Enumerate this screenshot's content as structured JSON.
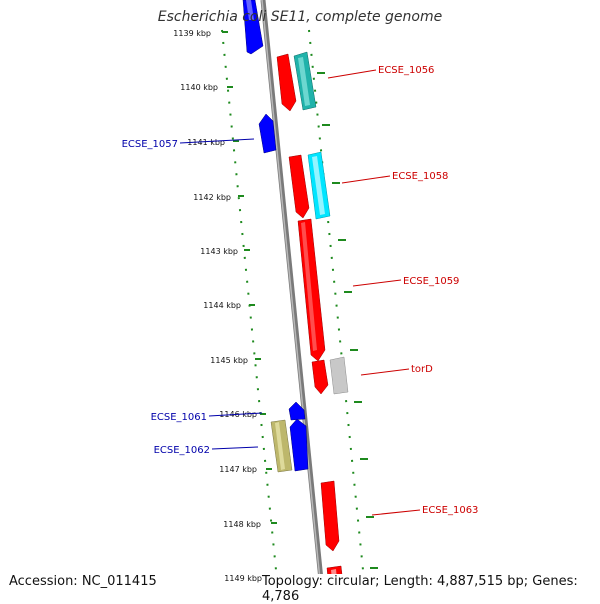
{
  "title": "Escherichia coli SE11, complete genome",
  "footer": {
    "accession": "Accession: NC_011415",
    "summary": "Topology: circular; Length: 4,887,515 bp; Genes: 4,786"
  },
  "colors": {
    "backbone": "#7a7a7a",
    "tick_dots": "#1e8a1e",
    "red_gene": "#ff0000",
    "blue_gene": "#0000ff",
    "teal_gene": "#20b2aa",
    "cyan_gene": "#00e5ff",
    "gray_gene": "#c8c8c8",
    "olive_gene": "#bdb76b",
    "red_label": "#cc0000",
    "blue_label": "#0000aa"
  },
  "scale_ticks": [
    "1139 kbp",
    "1140 kbp",
    "1141 kbp",
    "1142 kbp",
    "1143 kbp",
    "1144 kbp",
    "1145 kbp",
    "1146 kbp",
    "1147 kbp",
    "1148 kbp",
    "1149 kbp"
  ],
  "genes": [
    {
      "label": "ECSE_1056",
      "color_key": "red_label"
    },
    {
      "label": "ECSE_1057",
      "color_key": "blue_label"
    },
    {
      "label": "ECSE_1058",
      "color_key": "red_label"
    },
    {
      "label": "ECSE_1059",
      "color_key": "red_label"
    },
    {
      "label": "torD",
      "color_key": "red_label"
    },
    {
      "label": "ECSE_1061",
      "color_key": "blue_label"
    },
    {
      "label": "ECSE_1062",
      "color_key": "blue_label"
    },
    {
      "label": "ECSE_1063",
      "color_key": "red_label"
    }
  ]
}
